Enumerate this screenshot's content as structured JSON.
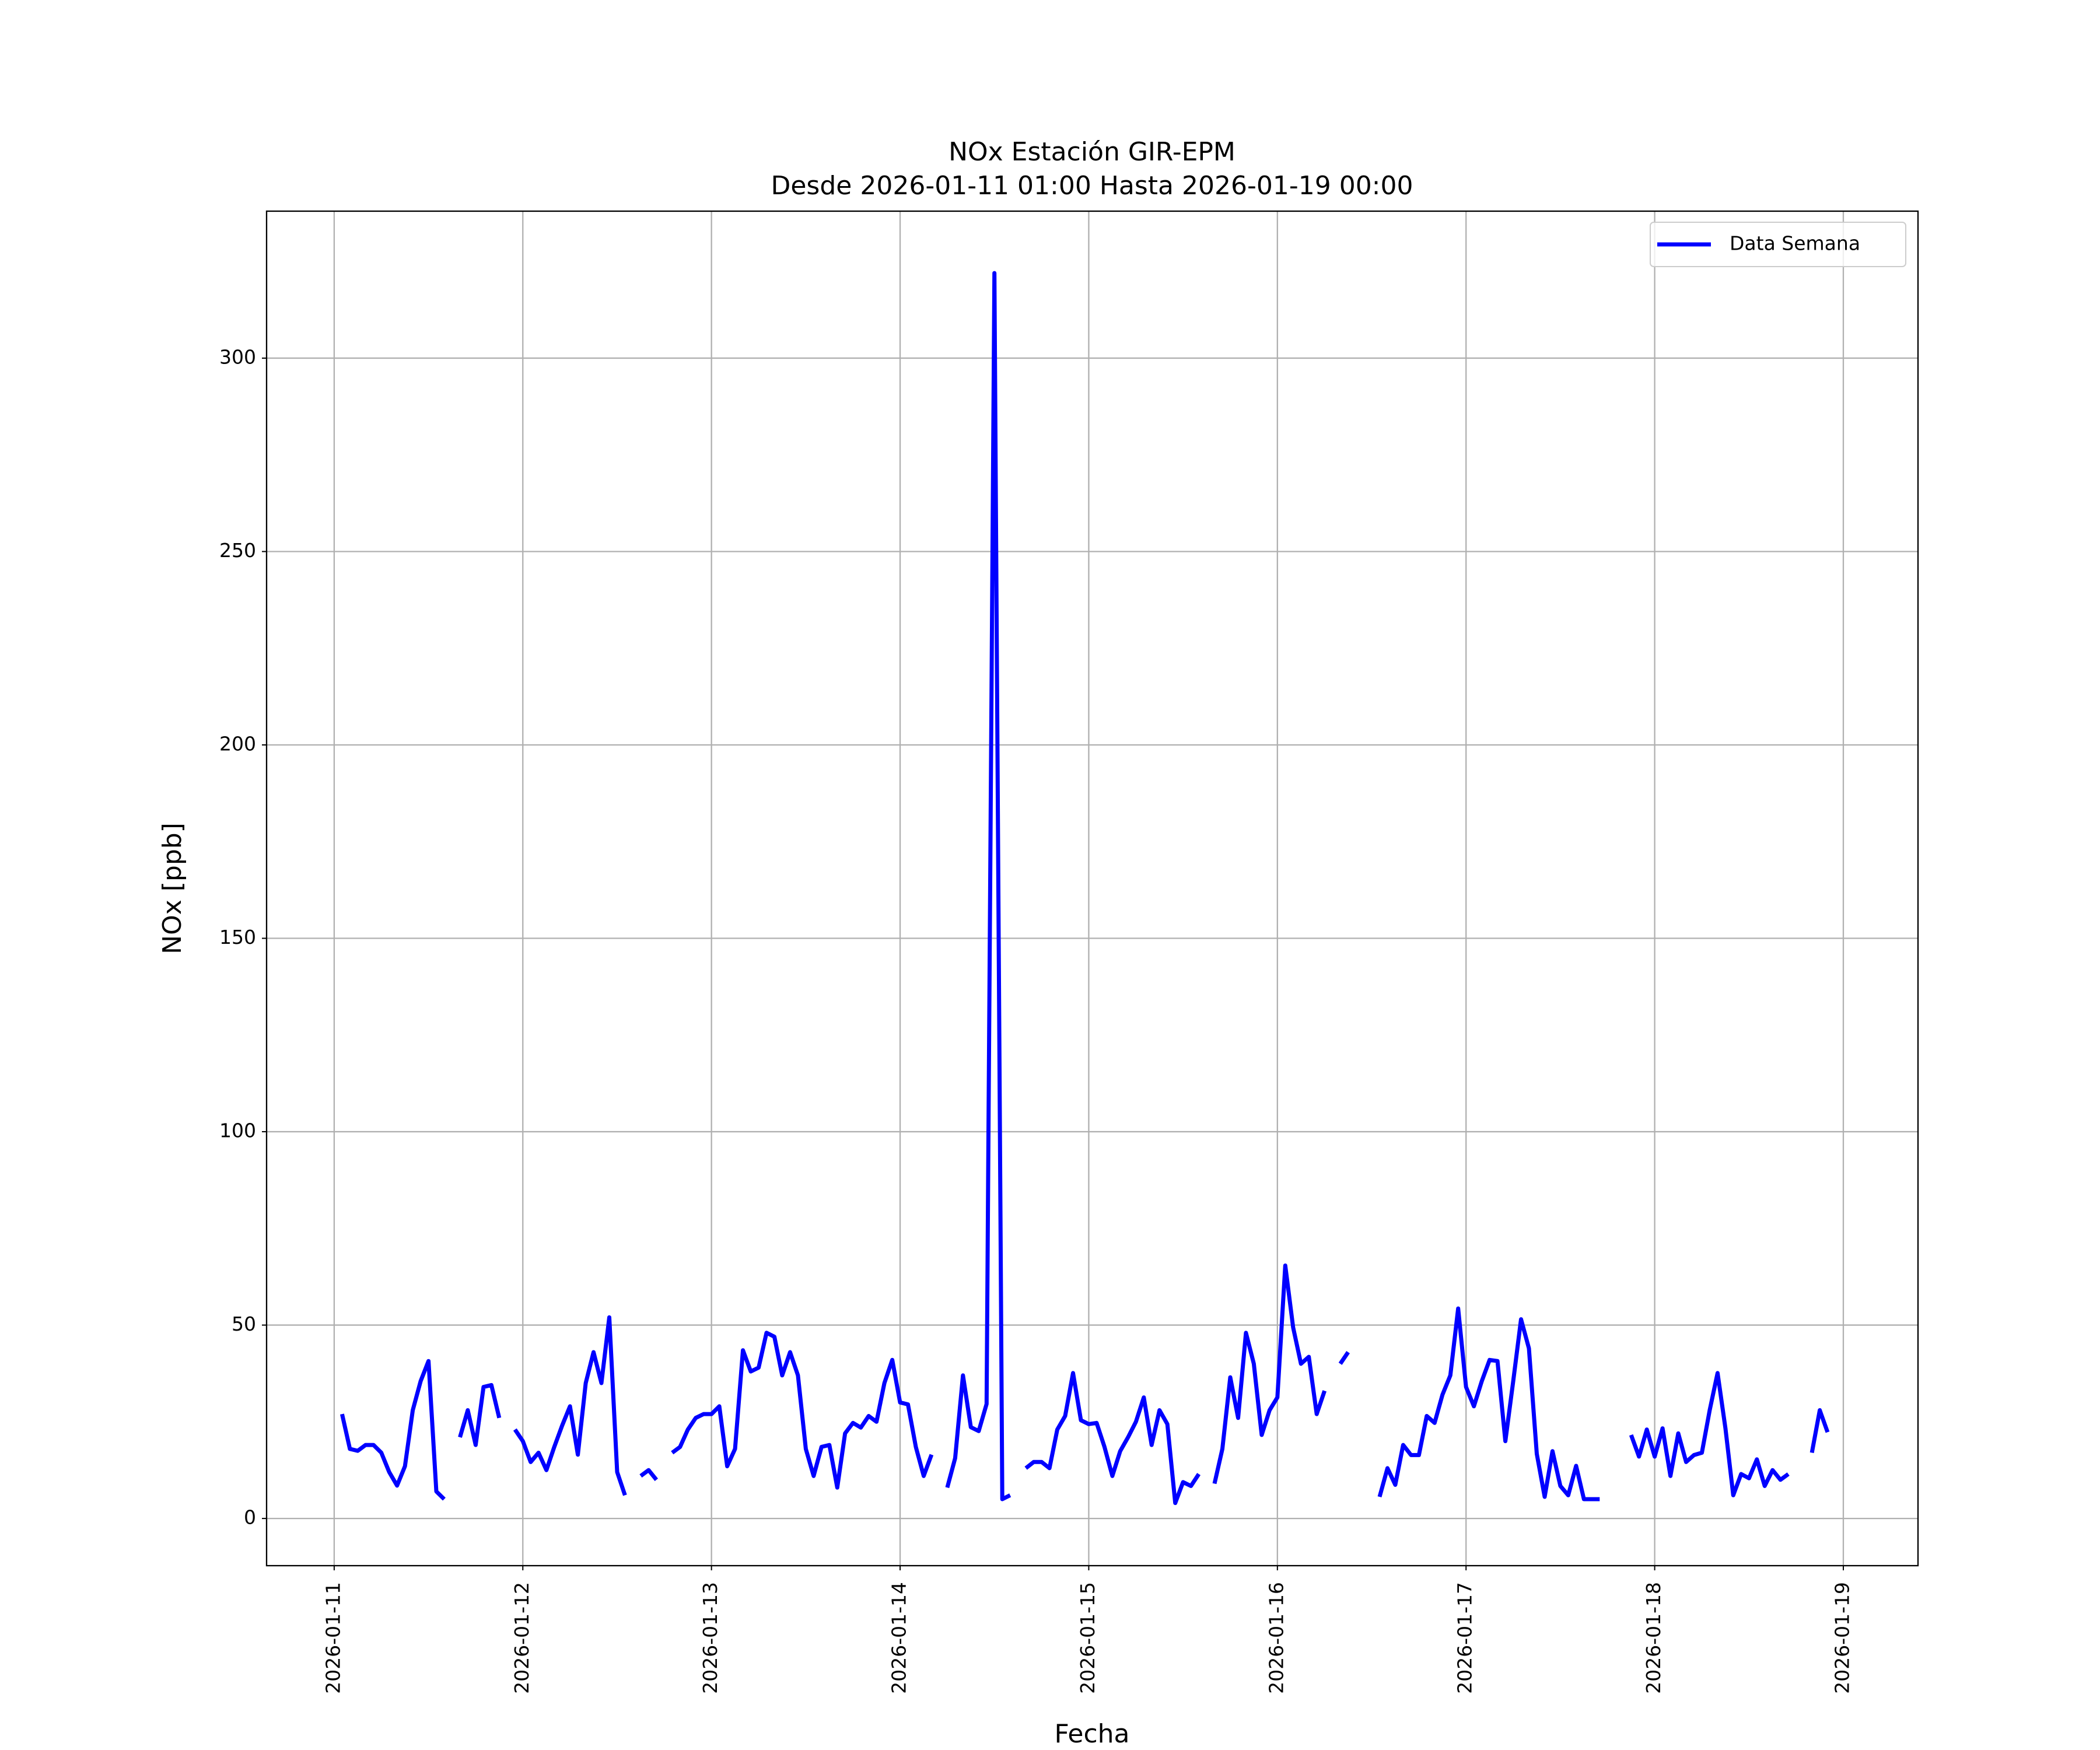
{
  "chart_data": {
    "type": "line",
    "title": "NOx Estación GIR-EPM",
    "subtitle": "Desde 2026-01-11 01:00 Hasta 2026-01-19 00:00",
    "x_label": "Fecha",
    "y_label": "NOx [ppb]",
    "x": [
      "2026-01-11 01:00",
      "2026-01-11 02:00",
      "2026-01-11 03:00",
      "2026-01-11 04:00",
      "2026-01-11 05:00",
      "2026-01-11 06:00",
      "2026-01-11 07:00",
      "2026-01-11 08:00",
      "2026-01-11 09:00",
      "2026-01-11 10:00",
      "2026-01-11 11:00",
      "2026-01-11 12:00",
      "2026-01-11 13:00",
      "2026-01-11 14:00",
      "2026-01-11 15:00",
      "2026-01-11 16:00",
      "2026-01-11 17:00",
      "2026-01-11 18:00",
      "2026-01-11 19:00",
      "2026-01-11 20:00",
      "2026-01-11 21:00",
      "2026-01-11 22:00",
      "2026-01-11 23:00",
      "2026-01-12 00:00",
      "2026-01-12 01:00",
      "2026-01-12 02:00",
      "2026-01-12 03:00",
      "2026-01-12 04:00",
      "2026-01-12 05:00",
      "2026-01-12 06:00",
      "2026-01-12 07:00",
      "2026-01-12 08:00",
      "2026-01-12 09:00",
      "2026-01-12 10:00",
      "2026-01-12 11:00",
      "2026-01-12 12:00",
      "2026-01-12 13:00",
      "2026-01-12 14:00",
      "2026-01-12 15:00",
      "2026-01-12 16:00",
      "2026-01-12 17:00",
      "2026-01-12 18:00",
      "2026-01-12 19:00",
      "2026-01-12 20:00",
      "2026-01-12 21:00",
      "2026-01-12 22:00",
      "2026-01-12 23:00",
      "2026-01-13 00:00",
      "2026-01-13 01:00",
      "2026-01-13 02:00",
      "2026-01-13 03:00",
      "2026-01-13 04:00",
      "2026-01-13 05:00",
      "2026-01-13 06:00",
      "2026-01-13 07:00",
      "2026-01-13 08:00",
      "2026-01-13 09:00",
      "2026-01-13 10:00",
      "2026-01-13 11:00",
      "2026-01-13 12:00",
      "2026-01-13 13:00",
      "2026-01-13 14:00",
      "2026-01-13 15:00",
      "2026-01-13 16:00",
      "2026-01-13 17:00",
      "2026-01-13 18:00",
      "2026-01-13 19:00",
      "2026-01-13 20:00",
      "2026-01-13 21:00",
      "2026-01-13 22:00",
      "2026-01-13 23:00",
      "2026-01-14 00:00",
      "2026-01-14 01:00",
      "2026-01-14 02:00",
      "2026-01-14 03:00",
      "2026-01-14 04:00",
      "2026-01-14 05:00",
      "2026-01-14 06:00",
      "2026-01-14 07:00",
      "2026-01-14 08:00",
      "2026-01-14 09:00",
      "2026-01-14 10:00",
      "2026-01-14 11:00",
      "2026-01-14 12:00",
      "2026-01-14 13:00",
      "2026-01-14 14:00",
      "2026-01-14 15:00",
      "2026-01-14 16:00",
      "2026-01-14 17:00",
      "2026-01-14 18:00",
      "2026-01-14 19:00",
      "2026-01-14 20:00",
      "2026-01-14 21:00",
      "2026-01-14 22:00",
      "2026-01-14 23:00",
      "2026-01-15 00:00",
      "2026-01-15 01:00",
      "2026-01-15 02:00",
      "2026-01-15 03:00",
      "2026-01-15 04:00",
      "2026-01-15 05:00",
      "2026-01-15 06:00",
      "2026-01-15 07:00",
      "2026-01-15 08:00",
      "2026-01-15 09:00",
      "2026-01-15 10:00",
      "2026-01-15 11:00",
      "2026-01-15 12:00",
      "2026-01-15 13:00",
      "2026-01-15 14:00",
      "2026-01-15 15:00",
      "2026-01-15 16:00",
      "2026-01-15 17:00",
      "2026-01-15 18:00",
      "2026-01-15 19:00",
      "2026-01-15 20:00",
      "2026-01-15 21:00",
      "2026-01-15 22:00",
      "2026-01-15 23:00",
      "2026-01-16 00:00",
      "2026-01-16 01:00",
      "2026-01-16 02:00",
      "2026-01-16 03:00",
      "2026-01-16 04:00",
      "2026-01-16 05:00",
      "2026-01-16 06:00",
      "2026-01-16 07:00",
      "2026-01-16 08:00",
      "2026-01-16 09:00",
      "2026-01-16 10:00",
      "2026-01-16 11:00",
      "2026-01-16 12:00",
      "2026-01-16 13:00",
      "2026-01-16 14:00",
      "2026-01-16 15:00",
      "2026-01-16 16:00",
      "2026-01-16 17:00",
      "2026-01-16 18:00",
      "2026-01-16 19:00",
      "2026-01-16 20:00",
      "2026-01-16 21:00",
      "2026-01-16 22:00",
      "2026-01-16 23:00",
      "2026-01-17 00:00",
      "2026-01-17 01:00",
      "2026-01-17 02:00",
      "2026-01-17 03:00",
      "2026-01-17 04:00",
      "2026-01-17 05:00",
      "2026-01-17 06:00",
      "2026-01-17 07:00",
      "2026-01-17 08:00",
      "2026-01-17 09:00",
      "2026-01-17 10:00",
      "2026-01-17 11:00",
      "2026-01-17 12:00",
      "2026-01-17 13:00",
      "2026-01-17 14:00",
      "2026-01-17 15:00",
      "2026-01-17 16:00",
      "2026-01-17 17:00",
      "2026-01-17 18:00",
      "2026-01-17 19:00",
      "2026-01-17 20:00",
      "2026-01-17 21:00",
      "2026-01-17 22:00",
      "2026-01-17 23:00",
      "2026-01-18 00:00",
      "2026-01-18 01:00",
      "2026-01-18 02:00",
      "2026-01-18 03:00",
      "2026-01-18 04:00",
      "2026-01-18 05:00",
      "2026-01-18 06:00",
      "2026-01-18 07:00",
      "2026-01-18 08:00",
      "2026-01-18 09:00",
      "2026-01-18 10:00",
      "2026-01-18 11:00",
      "2026-01-18 12:00",
      "2026-01-18 13:00",
      "2026-01-18 14:00",
      "2026-01-18 15:00",
      "2026-01-18 16:00",
      "2026-01-18 17:00",
      "2026-01-18 18:00",
      "2026-01-18 19:00",
      "2026-01-18 20:00",
      "2026-01-18 21:00",
      "2026-01-18 22:00",
      "2026-01-18 23:00",
      "2026-01-19 00:00"
    ],
    "series": [
      {
        "name": "Data Semana",
        "color": "#0000ff",
        "values": [
          27,
          18,
          17.5,
          19,
          19,
          17,
          12,
          8.5,
          13.5,
          28,
          35.5,
          40.7,
          7,
          5,
          null,
          21,
          28,
          19,
          34,
          34.5,
          26,
          null,
          23,
          20,
          14.6,
          17,
          12.5,
          18.5,
          24,
          29,
          16.5,
          35,
          43,
          35,
          52,
          12,
          6,
          null,
          11,
          12.5,
          10,
          null,
          17,
          18.5,
          23,
          26,
          27,
          27,
          29,
          13.5,
          18,
          43.5,
          38,
          39,
          48,
          47,
          37,
          43,
          37,
          18,
          11,
          18.5,
          19,
          8,
          22,
          24.7,
          23.5,
          26.5,
          25,
          35,
          41,
          30,
          29.5,
          18.5,
          11,
          16.5,
          null,
          8,
          15.6,
          37,
          23.6,
          22.6,
          29.6,
          322,
          5,
          6,
          null,
          13,
          14.6,
          14.6,
          13,
          23,
          26.5,
          37.6,
          25.4,
          24.4,
          24.7,
          18.5,
          11,
          17.4,
          21,
          25,
          31.3,
          19,
          28,
          24.4,
          4,
          9.4,
          8.4,
          11.5,
          null,
          9,
          18,
          36.5,
          26,
          48,
          40,
          21.6,
          28,
          31.3,
          65.4,
          49.4,
          40,
          41.8,
          27,
          33,
          null,
          40,
          43,
          null,
          null,
          null,
          5.6,
          13,
          8.7,
          19,
          16.4,
          16.4,
          26.5,
          24.7,
          32,
          37,
          54.3,
          34,
          29,
          35.5,
          41,
          40.7,
          20,
          35.5,
          51.5,
          44,
          16.7,
          5.6,
          17.4,
          8.4,
          6,
          13.6,
          5,
          5,
          5,
          null,
          null,
          null,
          21.6,
          16,
          23,
          16,
          23.3,
          11,
          22,
          14.6,
          16.4,
          17,
          28,
          37.6,
          23.3,
          6,
          11.5,
          10.4,
          15.3,
          8.4,
          12.5,
          10,
          11.5,
          null,
          null,
          17,
          28,
          22.3,
          null,
          null
        ]
      }
    ],
    "xlim": [
      "2026-01-10 15:24",
      "2026-01-19 09:30"
    ],
    "xticks": [
      "2026-01-11",
      "2026-01-12",
      "2026-01-13",
      "2026-01-14",
      "2026-01-15",
      "2026-01-16",
      "2026-01-17",
      "2026-01-18",
      "2026-01-19"
    ],
    "ylim": [
      -12.2,
      338
    ],
    "yticks": [
      0,
      50,
      100,
      150,
      200,
      250,
      300
    ],
    "grid": true,
    "legend": "upper right"
  }
}
